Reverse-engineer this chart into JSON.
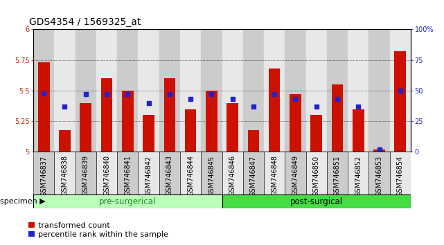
{
  "title": "GDS4354 / 1569325_at",
  "categories": [
    "GSM746837",
    "GSM746838",
    "GSM746839",
    "GSM746840",
    "GSM746841",
    "GSM746842",
    "GSM746843",
    "GSM746844",
    "GSM746845",
    "GSM746846",
    "GSM746847",
    "GSM746848",
    "GSM746849",
    "GSM746850",
    "GSM746851",
    "GSM746852",
    "GSM746853",
    "GSM746854"
  ],
  "bar_values": [
    5.73,
    5.18,
    5.4,
    5.6,
    5.5,
    5.3,
    5.6,
    5.35,
    5.5,
    5.4,
    5.18,
    5.68,
    5.47,
    5.3,
    5.55,
    5.35,
    5.02,
    5.82
  ],
  "dot_values": [
    48,
    37,
    47,
    47,
    47,
    40,
    47,
    43,
    47,
    43,
    37,
    47,
    43,
    37,
    43,
    37,
    2,
    50
  ],
  "ymin": 5.0,
  "ymax": 6.0,
  "yticks": [
    5.0,
    5.25,
    5.5,
    5.75,
    6.0
  ],
  "y2min": 0,
  "y2max": 100,
  "y2ticks": [
    0,
    25,
    50,
    75,
    100
  ],
  "bar_color": "#cc1100",
  "dot_color": "#2222cc",
  "pre_surgical_count": 9,
  "post_surgical_count": 9,
  "pre_color": "#bbffbb",
  "post_color": "#44dd44",
  "group_label_pre_color": "#228822",
  "group_label_post_color": "#000000",
  "tick_label_color": "#cc2200",
  "y2_tick_color": "#2222cc",
  "bar_width": 0.55,
  "legend_items": [
    "transformed count",
    "percentile rank within the sample"
  ],
  "legend_colors": [
    "#cc1100",
    "#2222cc"
  ],
  "title_fontsize": 10,
  "tick_fontsize": 7,
  "group_fontsize": 8.5,
  "legend_fontsize": 8
}
